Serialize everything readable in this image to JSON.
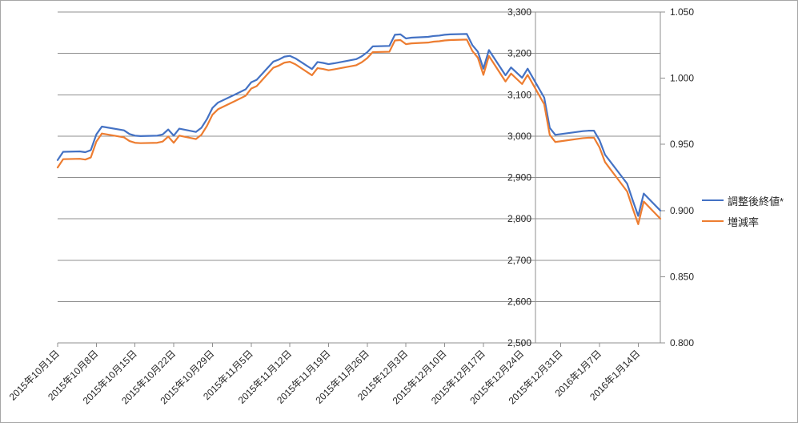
{
  "chart_data": {
    "type": "line",
    "title": "",
    "legend_position": "right",
    "grid": "horizontal",
    "x_axis": {
      "kind": "date",
      "tick_dates": [
        "2015-10-01",
        "2015-10-08",
        "2015-10-15",
        "2015-10-22",
        "2015-10-29",
        "2015-11-05",
        "2015-11-12",
        "2015-11-19",
        "2015-11-26",
        "2015-12-03",
        "2015-12-10",
        "2015-12-17",
        "2015-12-24",
        "2015-12-31",
        "2016-01-07",
        "2016-01-14"
      ],
      "tick_labels": [
        "2015年10月1日",
        "2015年10月8日",
        "2015年10月15日",
        "2015年10月22日",
        "2015年10月29日",
        "2015年11月5日",
        "2015年11月12日",
        "2015年11月19日",
        "2015年11月26日",
        "2015年12月3日",
        "2015年12月10日",
        "2015年12月17日",
        "2015年12月24日",
        "2015年12月31日",
        "2016年1月7日",
        "2016年1月14日"
      ],
      "range_start": "2015-10-01",
      "range_end": "2016-01-18"
    },
    "left_axis": {
      "min": 2500,
      "max": 3300,
      "step": 100,
      "tick_labels": [
        "2,500",
        "2,600",
        "2,700",
        "2,800",
        "2,900",
        "3,000",
        "3,100",
        "3,200",
        "3,300"
      ]
    },
    "right_axis": {
      "min": 0.8,
      "max": 1.05,
      "step": 0.05,
      "tick_labels": [
        "0.800",
        "0.850",
        "0.900",
        "0.950",
        "1.000",
        "1.050"
      ]
    },
    "dates": [
      "2015-10-01",
      "2015-10-02",
      "2015-10-05",
      "2015-10-06",
      "2015-10-07",
      "2015-10-08",
      "2015-10-09",
      "2015-10-13",
      "2015-10-14",
      "2015-10-15",
      "2015-10-16",
      "2015-10-19",
      "2015-10-20",
      "2015-10-21",
      "2015-10-22",
      "2015-10-23",
      "2015-10-26",
      "2015-10-27",
      "2015-10-28",
      "2015-10-29",
      "2015-10-30",
      "2015-11-02",
      "2015-11-04",
      "2015-11-05",
      "2015-11-06",
      "2015-11-09",
      "2015-11-10",
      "2015-11-11",
      "2015-11-12",
      "2015-11-13",
      "2015-11-16",
      "2015-11-17",
      "2015-11-18",
      "2015-11-19",
      "2015-11-20",
      "2015-11-24",
      "2015-11-25",
      "2015-11-26",
      "2015-11-27",
      "2015-11-30",
      "2015-12-01",
      "2015-12-02",
      "2015-12-03",
      "2015-12-04",
      "2015-12-07",
      "2015-12-08",
      "2015-12-09",
      "2015-12-10",
      "2015-12-11",
      "2015-12-14",
      "2015-12-15",
      "2015-12-16",
      "2015-12-17",
      "2015-12-18",
      "2015-12-21",
      "2015-12-22",
      "2015-12-24",
      "2015-12-25",
      "2015-12-28",
      "2015-12-29",
      "2015-12-30",
      "2016-01-04",
      "2016-01-05",
      "2016-01-06",
      "2016-01-07",
      "2016-01-08",
      "2016-01-12",
      "2016-01-13",
      "2016-01-14",
      "2016-01-15",
      "2016-01-18"
    ],
    "series": [
      {
        "name": "調整後終値*",
        "color": "#4472C4",
        "axis": "left",
        "values": [
          2942,
          2962,
          2963,
          2961,
          2966,
          3004,
          3023,
          3014,
          3005,
          3001,
          3000,
          3001,
          3004,
          3016,
          3001,
          3018,
          3010,
          3020,
          3041,
          3068,
          3081,
          3100,
          3113,
          3130,
          3136,
          3180,
          3185,
          3192,
          3194,
          3188,
          3162,
          3179,
          3177,
          3174,
          3176,
          3186,
          3193,
          3203,
          3217,
          3218,
          3245,
          3246,
          3236,
          3238,
          3240,
          3242,
          3243,
          3245,
          3246,
          3247,
          3220,
          3204,
          3163,
          3208,
          3147,
          3166,
          3141,
          3163,
          3093,
          3020,
          3003,
          3012,
          3013,
          3013,
          2990,
          2955,
          2885,
          2845,
          2807,
          2861,
          2820
        ]
      },
      {
        "name": "増減率",
        "color": "#ED7D31",
        "axis": "right",
        "values": [
          0.9325,
          0.9388,
          0.9391,
          0.9385,
          0.9401,
          0.9521,
          0.9582,
          0.9553,
          0.9525,
          0.9512,
          0.9509,
          0.9512,
          0.9521,
          0.9559,
          0.9512,
          0.9566,
          0.954,
          0.9572,
          0.9639,
          0.9724,
          0.9765,
          0.9826,
          0.9867,
          0.9921,
          0.994,
          1.0079,
          1.0095,
          1.0117,
          1.0124,
          1.0105,
          1.0022,
          1.0076,
          1.007,
          1.006,
          1.0067,
          1.0098,
          1.012,
          1.0152,
          1.0197,
          1.02,
          1.0285,
          1.0288,
          1.0257,
          1.0263,
          1.0269,
          1.0276,
          1.0279,
          1.0285,
          1.0288,
          1.0292,
          1.0206,
          1.0155,
          1.0025,
          1.0168,
          0.9975,
          1.0035,
          0.9956,
          1.0025,
          0.9803,
          0.9572,
          0.9518,
          0.9547,
          0.955,
          0.955,
          0.9477,
          0.9366,
          0.9144,
          0.9017,
          0.8897,
          0.9068,
          0.8938
        ]
      }
    ],
    "colors": {
      "gridline": "#8f8f8f",
      "axis_line": "#8f8f8f",
      "label_text": "#262626",
      "series1": "#4472C4",
      "series2": "#ED7D31"
    }
  },
  "legend": {
    "items": [
      {
        "label": "調整後終値*"
      },
      {
        "label": "増減率"
      }
    ]
  }
}
